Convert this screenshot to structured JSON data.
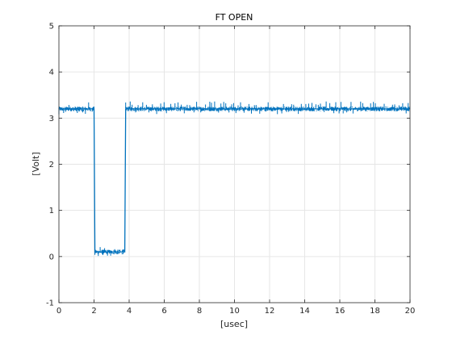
{
  "chart_data": {
    "type": "line",
    "title": "FT OPEN",
    "xlabel": "[usec]",
    "ylabel": "[Volt]",
    "xlim": [
      0,
      20
    ],
    "ylim": [
      -1,
      5
    ],
    "xticks": [
      0,
      2,
      4,
      6,
      8,
      10,
      12,
      14,
      16,
      18,
      20
    ],
    "yticks": [
      -1,
      0,
      1,
      2,
      3,
      4,
      5
    ],
    "grid": true,
    "line_color": "#0072BD",
    "series": [
      {
        "name": "",
        "x": [
          0,
          2.0,
          2.05,
          3.75,
          3.8,
          20
        ],
        "y": [
          3.2,
          3.2,
          0.1,
          0.1,
          3.2,
          3.2
        ],
        "noise_band": [
          {
            "x_range": [
              0,
              2.0
            ],
            "y_range": [
              3.15,
              3.25
            ]
          },
          {
            "x_range": [
              2.05,
              3.75
            ],
            "y_range": [
              0.05,
              0.15
            ]
          },
          {
            "x_range": [
              3.8,
              20
            ],
            "y_range": [
              3.15,
              3.25
            ]
          }
        ],
        "spikes": [
          {
            "x_range": [
              0,
              2.0
            ],
            "y_range": [
              3.08,
              3.36
            ]
          },
          {
            "x_range": [
              2.05,
              3.75
            ],
            "y_range": [
              0.0,
              0.22
            ]
          },
          {
            "x_range": [
              3.8,
              20
            ],
            "y_range": [
              3.08,
              3.36
            ]
          }
        ]
      }
    ]
  }
}
